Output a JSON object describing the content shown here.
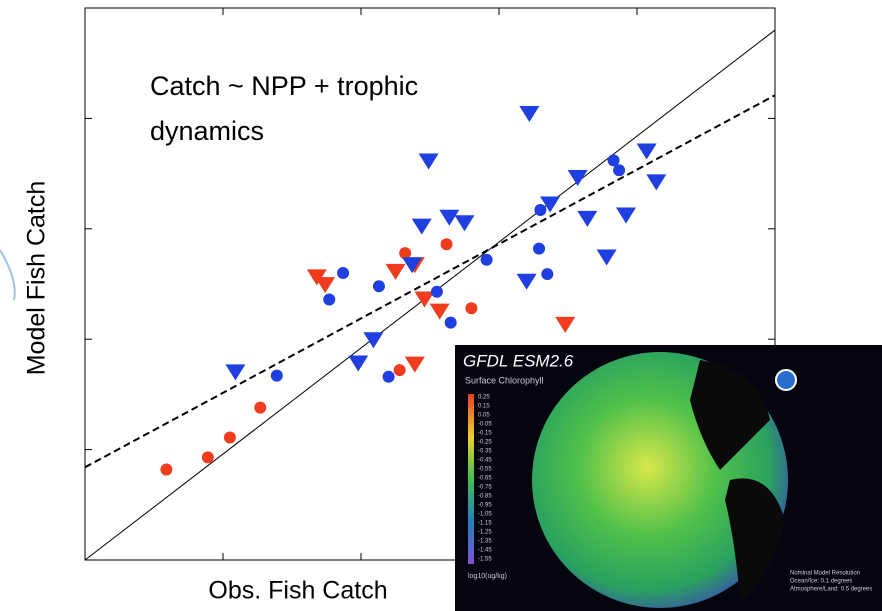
{
  "chart_data": {
    "type": "scatter",
    "xlabel": "Obs. Fish Catch",
    "ylabel": "Model Fish Catch",
    "annotation": [
      "Catch ~ NPP + trophic",
      "dynamics"
    ],
    "xlim": [
      0,
      5
    ],
    "ylim": [
      0,
      5
    ],
    "xticks": [
      1,
      2,
      3,
      4
    ],
    "yticks": [
      1,
      2,
      3,
      4
    ],
    "reference_lines": [
      {
        "style": "solid",
        "x": [
          0,
          5
        ],
        "y": [
          0,
          4.8
        ]
      },
      {
        "style": "dashed",
        "x": [
          0,
          5
        ],
        "y": [
          0.84,
          4.21
        ]
      }
    ],
    "series": [
      {
        "color": "#f03c1e",
        "marker": "circle",
        "x": [
          0.59,
          0.89,
          1.05,
          1.27,
          2.32,
          2.62,
          2.8,
          2.28
        ],
        "values": [
          0.82,
          0.93,
          1.11,
          1.38,
          2.78,
          2.86,
          2.28,
          1.72
        ]
      },
      {
        "color": "#f03c1e",
        "marker": "triangle",
        "x": [
          1.68,
          1.74,
          2.25,
          2.39,
          2.46,
          2.57,
          3.48,
          2.39
        ],
        "values": [
          2.56,
          2.49,
          2.61,
          2.67,
          2.36,
          2.25,
          2.13,
          1.77
        ]
      },
      {
        "color": "#1f3fe0",
        "marker": "circle",
        "x": [
          1.87,
          1.77,
          2.13,
          2.55,
          2.65,
          2.91,
          3.29,
          3.35,
          3.3,
          3.83,
          3.87,
          1.39,
          2.2
        ],
        "values": [
          2.6,
          2.36,
          2.48,
          2.43,
          2.15,
          2.72,
          2.82,
          2.59,
          3.17,
          3.62,
          3.53,
          1.67,
          1.66
        ]
      },
      {
        "color": "#1f3fe0",
        "marker": "triangle",
        "x": [
          1.09,
          2.09,
          1.98,
          2.49,
          2.44,
          2.64,
          2.75,
          2.37,
          3.22,
          3.2,
          3.37,
          3.57,
          3.64,
          3.78,
          3.92,
          4.07,
          4.14
        ],
        "values": [
          1.7,
          1.99,
          1.78,
          3.61,
          3.02,
          3.1,
          3.05,
          2.67,
          4.04,
          2.52,
          3.22,
          3.46,
          3.09,
          2.74,
          3.12,
          3.7,
          3.42
        ]
      }
    ]
  },
  "inset": {
    "title": "GFDL ESM2.6",
    "subtitle": "Surface Chlorophyll",
    "colorbar_labels": [
      "0.25",
      "0.15",
      "0.05",
      "-0.05",
      "-0.15",
      "-0.25",
      "-0.35",
      "-0.45",
      "-0.55",
      "-0.65",
      "-0.75",
      "-0.85",
      "-0.95",
      "-1.05",
      "-1.15",
      "-1.25",
      "-1.35",
      "-1.45",
      "-1.55"
    ],
    "colorbar_unit": "log10(ug/kg)",
    "note": [
      "Nominal Model Resolution",
      "Ocean/Ice: 0.1 degrees",
      "Atmosphere/Land: 0.5 degrees"
    ]
  }
}
